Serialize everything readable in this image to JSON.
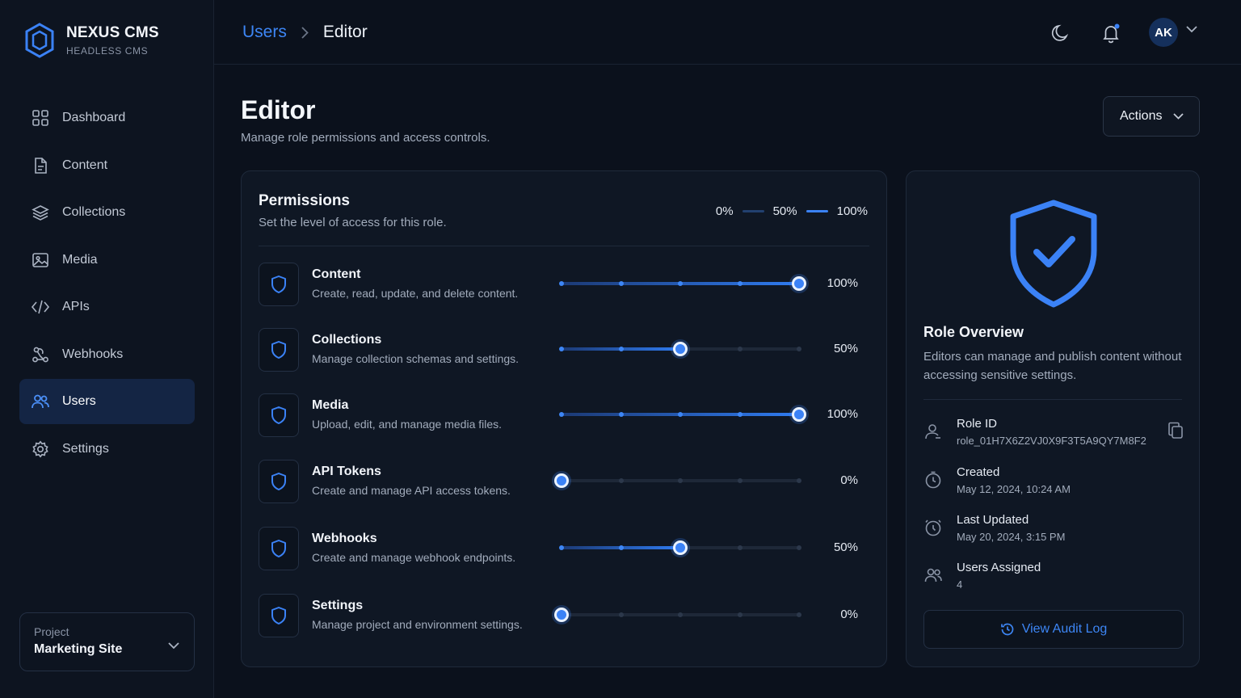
{
  "brand": {
    "name": "NEXUS CMS",
    "subtitle": "HEADLESS CMS"
  },
  "sidebar": {
    "items": [
      {
        "label": "Dashboard",
        "icon": "grid-icon",
        "active": false
      },
      {
        "label": "Content",
        "icon": "document-icon",
        "active": false
      },
      {
        "label": "Collections",
        "icon": "layers-icon",
        "active": false
      },
      {
        "label": "Media",
        "icon": "image-icon",
        "active": false
      },
      {
        "label": "APIs",
        "icon": "code-icon",
        "active": false
      },
      {
        "label": "Webhooks",
        "icon": "webhook-icon",
        "active": false
      },
      {
        "label": "Users",
        "icon": "users-icon",
        "active": true
      },
      {
        "label": "Settings",
        "icon": "gear-icon",
        "active": false
      }
    ]
  },
  "project": {
    "label": "Project",
    "value": "Marketing Site"
  },
  "header": {
    "breadcrumb": {
      "parent": "Users",
      "current": "Editor"
    },
    "avatar_initials": "AK",
    "notification_dot": true
  },
  "page": {
    "title": "Editor",
    "subtitle": "Manage role permissions and access controls.",
    "actions_label": "Actions"
  },
  "permissions": {
    "title": "Permissions",
    "subtitle": "Set the level of access for this role.",
    "legend": [
      "0%",
      "50%",
      "100%"
    ],
    "rows": [
      {
        "name": "Content",
        "description": "Create, read, update, and delete content.",
        "value": 100,
        "value_label": "100%"
      },
      {
        "name": "Collections",
        "description": "Manage collection schemas and settings.",
        "value": 50,
        "value_label": "50%"
      },
      {
        "name": "Media",
        "description": "Upload, edit, and manage media files.",
        "value": 100,
        "value_label": "100%"
      },
      {
        "name": "API Tokens",
        "description": "Create and manage API access tokens.",
        "value": 0,
        "value_label": "0%"
      },
      {
        "name": "Webhooks",
        "description": "Create and manage webhook endpoints.",
        "value": 50,
        "value_label": "50%"
      },
      {
        "name": "Settings",
        "description": "Manage project and environment settings.",
        "value": 0,
        "value_label": "0%"
      }
    ]
  },
  "role": {
    "title": "Role Overview",
    "description": "Editors can manage and publish content without accessing sensitive settings.",
    "meta": [
      {
        "label": "Role ID",
        "value": "role_01H7X6Z2VJ0X9F3T5A9QY7M8F2",
        "icon": "user-id-icon"
      },
      {
        "label": "Created",
        "value": "May 12, 2024, 10:24 AM",
        "icon": "clock-icon"
      },
      {
        "label": "Last Updated",
        "value": "May 20, 2024, 3:15 PM",
        "icon": "history-icon"
      },
      {
        "label": "Users Assigned",
        "value": "4",
        "icon": "users-icon"
      }
    ],
    "audit_label": "View Audit Log"
  },
  "colors": {
    "accent": "#3b82f6",
    "background": "#0b111c",
    "card": "#0f1724",
    "active_nav": "#142544"
  }
}
